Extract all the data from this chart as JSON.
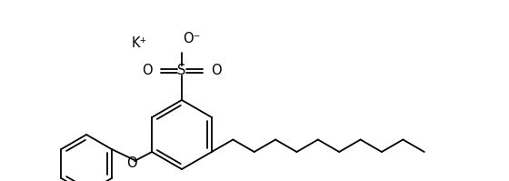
{
  "background_color": "#ffffff",
  "line_color": "#000000",
  "line_width": 1.3,
  "font_size": 9.5,
  "K_label": "K⁺",
  "O_minus_label": "O⁻",
  "S_label": "S",
  "O_label": "O",
  "figsize": [
    5.6,
    1.99
  ],
  "dpi": 100
}
